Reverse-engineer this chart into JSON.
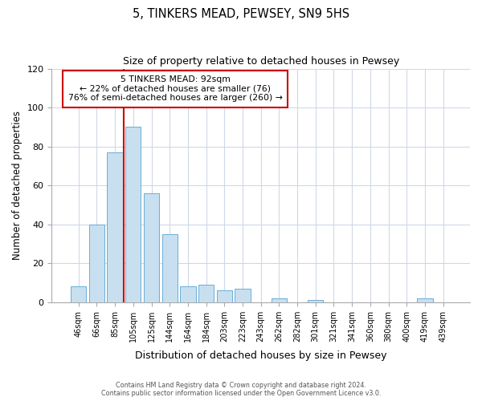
{
  "title": "5, TINKERS MEAD, PEWSEY, SN9 5HS",
  "subtitle": "Size of property relative to detached houses in Pewsey",
  "xlabel": "Distribution of detached houses by size in Pewsey",
  "ylabel": "Number of detached properties",
  "bar_labels": [
    "46sqm",
    "66sqm",
    "85sqm",
    "105sqm",
    "125sqm",
    "144sqm",
    "164sqm",
    "184sqm",
    "203sqm",
    "223sqm",
    "243sqm",
    "262sqm",
    "282sqm",
    "301sqm",
    "321sqm",
    "341sqm",
    "360sqm",
    "380sqm",
    "400sqm",
    "419sqm",
    "439sqm"
  ],
  "bar_values": [
    8,
    40,
    77,
    90,
    56,
    35,
    8,
    9,
    6,
    7,
    0,
    2,
    0,
    1,
    0,
    0,
    0,
    0,
    0,
    2,
    0
  ],
  "bar_color": "#c8dff0",
  "bar_edge_color": "#6aaed6",
  "vline_x": 2.5,
  "vline_color": "#cc0000",
  "property_line_label": "5 TINKERS MEAD: 92sqm",
  "annotation_line1": "← 22% of detached houses are smaller (76)",
  "annotation_line2": "76% of semi-detached houses are larger (260) →",
  "annotation_box_color": "#ffffff",
  "annotation_box_edge_color": "#cc0000",
  "ylim": [
    0,
    120
  ],
  "yticks": [
    0,
    20,
    40,
    60,
    80,
    100,
    120
  ],
  "bg_color": "#ffffff",
  "grid_color": "#d0d8e8",
  "footer1": "Contains HM Land Registry data © Crown copyright and database right 2024.",
  "footer2": "Contains public sector information licensed under the Open Government Licence v3.0."
}
